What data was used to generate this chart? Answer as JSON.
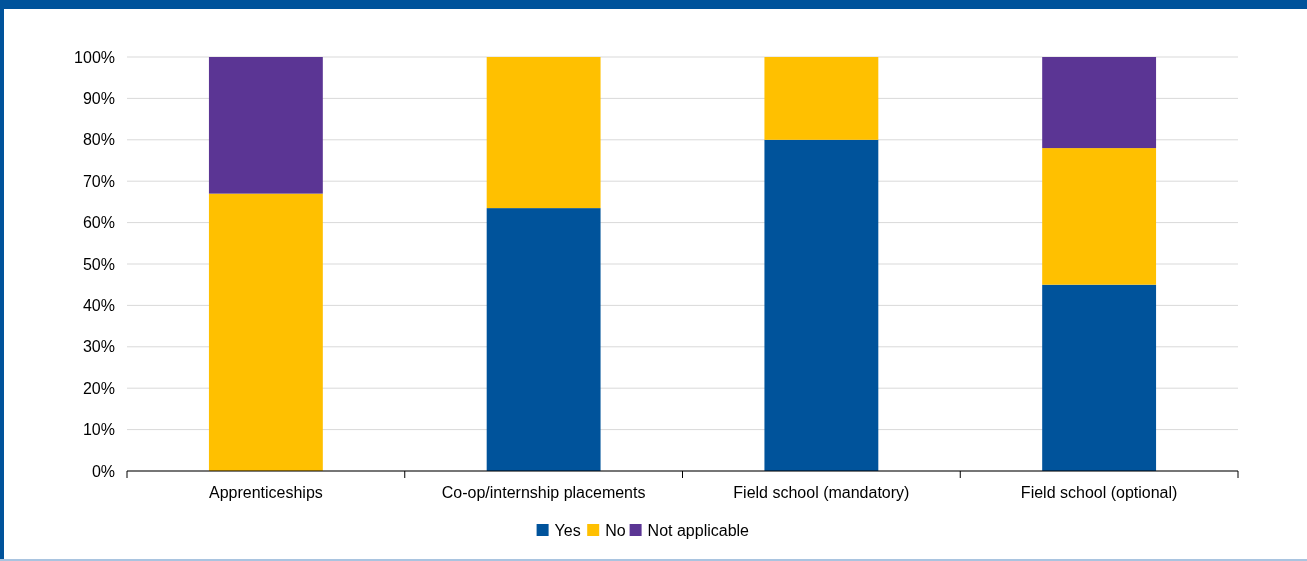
{
  "chart_data": {
    "type": "bar",
    "stacked": true,
    "categories": [
      "Apprenticeships",
      "Co-op/internship placements",
      "Field school (mandatory)",
      "Field school (optional)"
    ],
    "series": [
      {
        "name": "Yes",
        "color": "#00539b",
        "values": [
          0,
          63.5,
          80,
          45
        ]
      },
      {
        "name": "No",
        "color": "#ffc000",
        "values": [
          67,
          36.5,
          20,
          33
        ]
      },
      {
        "name": "Not applicable",
        "color": "#5b3594",
        "values": [
          33,
          0,
          0,
          22
        ]
      }
    ],
    "ylim": [
      0,
      100
    ],
    "yticks": [
      {
        "value": 0,
        "label": "0%"
      },
      {
        "value": 10,
        "label": "10%"
      },
      {
        "value": 20,
        "label": "20%"
      },
      {
        "value": 30,
        "label": "30%"
      },
      {
        "value": 40,
        "label": "40%"
      },
      {
        "value": 50,
        "label": "50%"
      },
      {
        "value": 60,
        "label": "60%"
      },
      {
        "value": 70,
        "label": "70%"
      },
      {
        "value": 80,
        "label": "80%"
      },
      {
        "value": 90,
        "label": "90%"
      },
      {
        "value": 100,
        "label": "100%"
      }
    ],
    "grid": "y",
    "legend": "bottom"
  }
}
